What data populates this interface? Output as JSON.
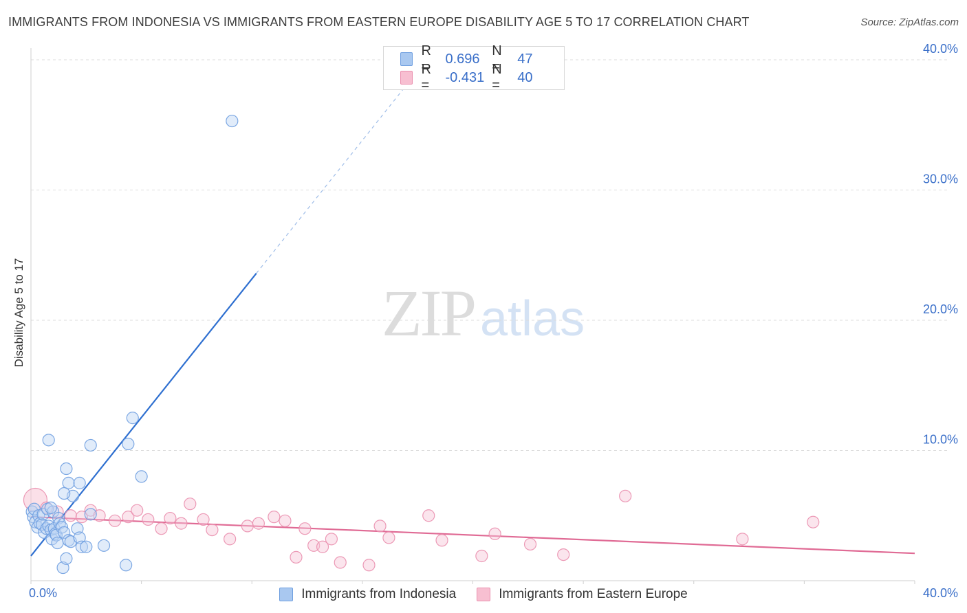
{
  "title": "IMMIGRANTS FROM INDONESIA VS IMMIGRANTS FROM EASTERN EUROPE DISABILITY AGE 5 TO 17 CORRELATION CHART",
  "source": "Source: ZipAtlas.com",
  "watermark": {
    "zip": "ZIP",
    "atlas": "atlas"
  },
  "legend": {
    "r_label": "R =",
    "n_label": "N =",
    "series": [
      {
        "name": "Immigrants from Indonesia",
        "r": "0.696",
        "n": "47",
        "color": "#a9c8f0",
        "stroke": "#6f9fe0"
      },
      {
        "name": "Immigrants from Eastern Europe",
        "r": "-0.431",
        "n": "40",
        "color": "#f7bfd1",
        "stroke": "#ea8fae"
      }
    ]
  },
  "chart_data": {
    "type": "scatter",
    "title": "IMMIGRANTS FROM INDONESIA VS IMMIGRANTS FROM EASTERN EUROPE DISABILITY AGE 5 TO 17 CORRELATION CHART",
    "xlabel": "",
    "ylabel": "Disability Age 5 to 17",
    "xlim": [
      0,
      40
    ],
    "ylim": [
      0,
      41
    ],
    "x_tick_labels": [
      {
        "value": 0,
        "label": "0.0%"
      },
      {
        "value": 40,
        "label": "40.0%"
      }
    ],
    "y_tick_labels": [
      {
        "value": 10,
        "label": "10.0%"
      },
      {
        "value": 20,
        "label": "20.0%"
      },
      {
        "value": 30,
        "label": "30.0%"
      },
      {
        "value": 40,
        "label": "40.0%"
      }
    ],
    "grid": true,
    "legend_position": "top-center",
    "series": [
      {
        "name": "Immigrants from Indonesia",
        "color": "#6f9fe0",
        "fill": "#bcd4f4",
        "trend_color": "#2e6fd0",
        "trend": {
          "x0": 0,
          "y0": 1.9,
          "x1": 10.2,
          "y1": 23.6,
          "dash_to_x": 17.0
        },
        "points": [
          [
            0.05,
            5.3
          ],
          [
            0.1,
            4.9
          ],
          [
            0.15,
            5.5
          ],
          [
            0.2,
            4.5
          ],
          [
            0.3,
            4.1
          ],
          [
            0.35,
            5.0
          ],
          [
            0.4,
            4.4
          ],
          [
            0.5,
            4.3
          ],
          [
            0.55,
            5.1
          ],
          [
            0.6,
            3.7
          ],
          [
            0.7,
            4.0
          ],
          [
            0.75,
            5.5
          ],
          [
            0.8,
            4.2
          ],
          [
            0.9,
            3.9
          ],
          [
            0.95,
            3.2
          ],
          [
            1.0,
            5.3
          ],
          [
            1.05,
            4.0
          ],
          [
            1.1,
            3.6
          ],
          [
            1.15,
            3.5
          ],
          [
            1.2,
            2.9
          ],
          [
            1.25,
            4.8
          ],
          [
            1.3,
            4.4
          ],
          [
            1.4,
            4.1
          ],
          [
            1.45,
            1.0
          ],
          [
            1.5,
            3.7
          ],
          [
            1.6,
            1.7
          ],
          [
            1.7,
            3.1
          ],
          [
            1.8,
            3.0
          ],
          [
            1.9,
            6.5
          ],
          [
            2.1,
            4.0
          ],
          [
            2.2,
            3.3
          ],
          [
            2.3,
            2.6
          ],
          [
            2.5,
            2.6
          ],
          [
            2.7,
            5.1
          ],
          [
            3.3,
            2.7
          ],
          [
            0.8,
            10.8
          ],
          [
            2.7,
            10.4
          ],
          [
            4.4,
            10.5
          ],
          [
            4.6,
            12.5
          ],
          [
            5.0,
            8.0
          ],
          [
            1.6,
            8.6
          ],
          [
            1.7,
            7.5
          ],
          [
            1.5,
            6.7
          ],
          [
            2.2,
            7.5
          ],
          [
            0.9,
            5.6
          ],
          [
            4.3,
            1.2
          ],
          [
            9.1,
            35.3
          ]
        ]
      },
      {
        "name": "Immigrants from Eastern Europe",
        "color": "#ea8fae",
        "fill": "#f7c6d6",
        "trend_color": "#e06b95",
        "trend": {
          "x0": 0,
          "y0": 4.9,
          "x1": 40,
          "y1": 2.1
        },
        "points": [
          [
            0.2,
            6.2
          ],
          [
            0.7,
            5.6
          ],
          [
            1.2,
            5.3
          ],
          [
            1.8,
            5.0
          ],
          [
            2.3,
            4.9
          ],
          [
            2.7,
            5.4
          ],
          [
            3.1,
            5.0
          ],
          [
            3.8,
            4.6
          ],
          [
            4.4,
            4.9
          ],
          [
            4.8,
            5.4
          ],
          [
            5.3,
            4.7
          ],
          [
            5.9,
            4.0
          ],
          [
            6.3,
            4.8
          ],
          [
            6.8,
            4.4
          ],
          [
            7.2,
            5.9
          ],
          [
            7.8,
            4.7
          ],
          [
            8.2,
            3.9
          ],
          [
            9.0,
            3.2
          ],
          [
            9.8,
            4.2
          ],
          [
            10.3,
            4.4
          ],
          [
            11.0,
            4.9
          ],
          [
            11.5,
            4.6
          ],
          [
            12.0,
            1.8
          ],
          [
            12.4,
            4.0
          ],
          [
            12.8,
            2.7
          ],
          [
            13.2,
            2.6
          ],
          [
            13.6,
            3.2
          ],
          [
            14.0,
            1.4
          ],
          [
            15.3,
            1.2
          ],
          [
            15.8,
            4.2
          ],
          [
            16.2,
            3.3
          ],
          [
            18.0,
            5.0
          ],
          [
            18.6,
            3.1
          ],
          [
            20.4,
            1.9
          ],
          [
            21.0,
            3.6
          ],
          [
            22.6,
            2.8
          ],
          [
            24.1,
            2.0
          ],
          [
            26.9,
            6.5
          ],
          [
            32.2,
            3.2
          ],
          [
            35.4,
            4.5
          ]
        ]
      }
    ]
  }
}
